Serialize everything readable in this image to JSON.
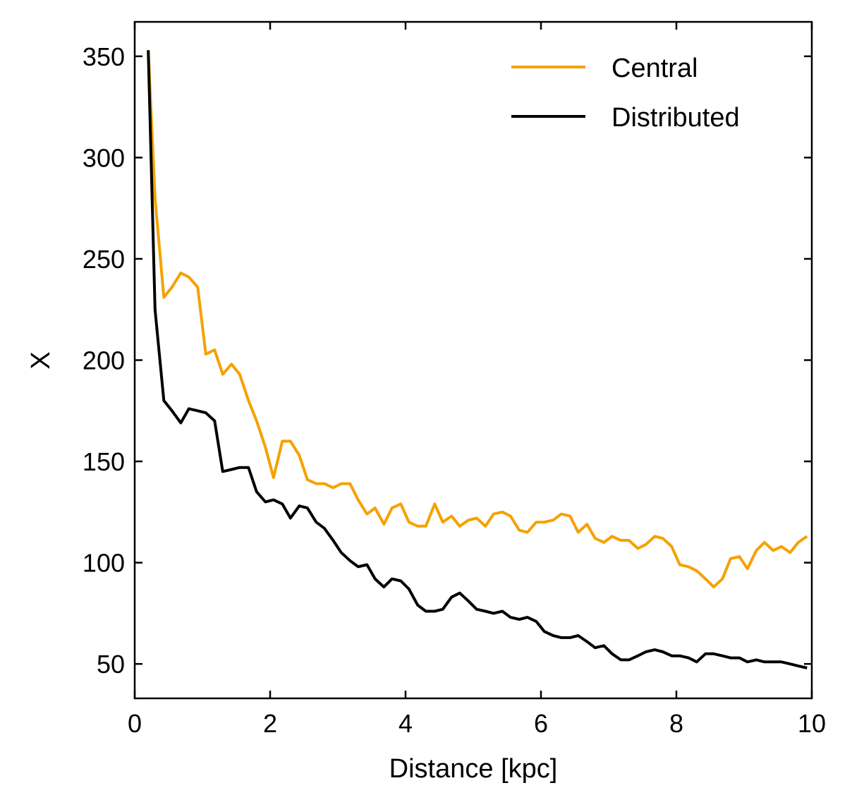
{
  "chart_data": {
    "type": "line",
    "title": "",
    "xlabel": "Distance [kpc]",
    "ylabel": "X",
    "xlim": [
      0,
      10
    ],
    "ylim": [
      33,
      367
    ],
    "xticks": [
      0,
      2,
      4,
      6,
      8,
      10
    ],
    "xtick_labels": [
      "0",
      "2",
      "4",
      "6",
      "8",
      "10"
    ],
    "yticks": [
      50,
      100,
      150,
      200,
      250,
      300,
      350
    ],
    "ytick_labels": [
      "50",
      "100",
      "150",
      "200",
      "250",
      "300",
      "350"
    ],
    "grid": false,
    "legend_position": "top-right",
    "x": [
      0.2,
      0.3,
      0.43,
      0.55,
      0.68,
      0.8,
      0.93,
      1.05,
      1.18,
      1.3,
      1.43,
      1.55,
      1.68,
      1.8,
      1.93,
      2.05,
      2.18,
      2.3,
      2.43,
      2.55,
      2.68,
      2.8,
      2.93,
      3.05,
      3.18,
      3.3,
      3.43,
      3.55,
      3.68,
      3.8,
      3.93,
      4.05,
      4.18,
      4.3,
      4.43,
      4.55,
      4.68,
      4.8,
      4.93,
      5.05,
      5.18,
      5.3,
      5.43,
      5.55,
      5.68,
      5.8,
      5.93,
      6.05,
      6.18,
      6.3,
      6.43,
      6.55,
      6.68,
      6.8,
      6.93,
      7.05,
      7.18,
      7.3,
      7.43,
      7.55,
      7.68,
      7.8,
      7.93,
      8.05,
      8.18,
      8.3,
      8.43,
      8.55,
      8.68,
      8.8,
      8.93,
      9.05,
      9.18,
      9.3,
      9.43,
      9.55,
      9.68,
      9.8,
      9.93
    ],
    "series": [
      {
        "name": "Central",
        "color": "#f5a100",
        "values": [
          353,
          280,
          231,
          236,
          243,
          241,
          236,
          203,
          205,
          193,
          198,
          193,
          180,
          170,
          157,
          142,
          160,
          160,
          153,
          141,
          139,
          139,
          137,
          139,
          139,
          131,
          124,
          127,
          119,
          127,
          129,
          120,
          118,
          118,
          129,
          120,
          123,
          118,
          121,
          122,
          118,
          124,
          125,
          123,
          116,
          115,
          120,
          120,
          121,
          124,
          123,
          115,
          119,
          112,
          110,
          113,
          111,
          111,
          107,
          109,
          113,
          112,
          108,
          99,
          98,
          96,
          92,
          88,
          92,
          102,
          103,
          97,
          106,
          110,
          106,
          108,
          105,
          110,
          113
        ]
      },
      {
        "name": "Distributed",
        "color": "#000000",
        "values": [
          353,
          225,
          180,
          175,
          169,
          176,
          175,
          174,
          170,
          145,
          146,
          147,
          147,
          135,
          130,
          131,
          129,
          122,
          128,
          127,
          120,
          117,
          111,
          105,
          101,
          98,
          99,
          92,
          88,
          92,
          91,
          87,
          79,
          76,
          76,
          77,
          83,
          85,
          81,
          77,
          76,
          75,
          76,
          73,
          72,
          73,
          71,
          66,
          64,
          63,
          63,
          64,
          61,
          58,
          59,
          55,
          52,
          52,
          54,
          56,
          57,
          56,
          54,
          54,
          53,
          51,
          55,
          55,
          54,
          53,
          53,
          51,
          52,
          51,
          51,
          51,
          50,
          49,
          48
        ]
      }
    ]
  }
}
